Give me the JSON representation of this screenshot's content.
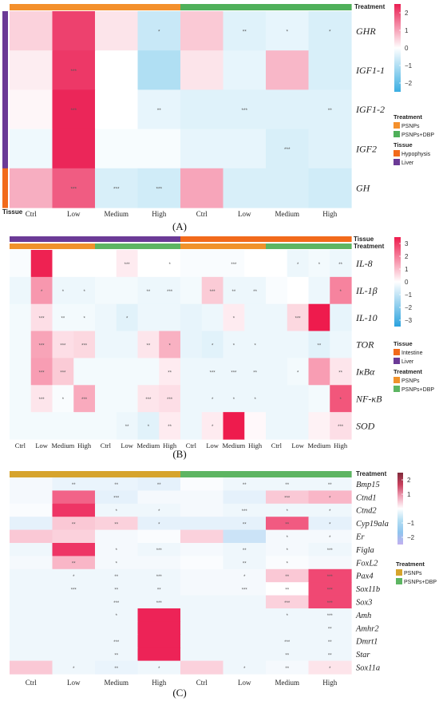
{
  "chart_data": [
    {
      "type": "heatmap",
      "panel_label": "(A)",
      "rows": [
        "GHR",
        "IGF1-1",
        "IGF1-2",
        "IGF2",
        "GH"
      ],
      "columns": [
        "Ctrl",
        "Low",
        "Medium",
        "High",
        "Ctrl",
        "Low",
        "Medium",
        "High"
      ],
      "values": [
        [
          0.5,
          2.1,
          0.3,
          -0.7,
          0.6,
          -0.4,
          -0.3,
          -0.5
        ],
        [
          0.2,
          2.2,
          0.0,
          -1.0,
          0.3,
          -0.3,
          0.8,
          -0.5
        ],
        [
          0.1,
          2.4,
          0.0,
          -0.3,
          -0.4,
          -0.4,
          -0.4,
          -0.4
        ],
        [
          -0.2,
          2.4,
          -0.1,
          -0.1,
          -0.3,
          -0.3,
          -0.5,
          -0.4
        ],
        [
          0.9,
          1.8,
          -0.5,
          -0.6,
          1.0,
          -0.5,
          -0.5,
          -0.6
        ]
      ],
      "significance": [
        [
          "",
          "",
          "",
          "*",
          "",
          "**",
          "*",
          "*"
        ],
        [
          "",
          "***",
          "",
          "",
          "",
          "",
          "",
          ""
        ],
        [
          "",
          "***",
          "",
          "**",
          "",
          "***",
          "",
          "**"
        ],
        [
          "",
          "",
          "",
          "",
          "",
          "",
          "***",
          ""
        ],
        [
          "",
          "***",
          "***",
          "***",
          "",
          "",
          "",
          ""
        ]
      ],
      "color_scale": {
        "range": [
          -2.5,
          2.5
        ],
        "ticks": [
          "2",
          "1",
          "0",
          "−1",
          "−2"
        ],
        "colors": {
          "low": "#3aaee2",
          "mid": "#ffffff",
          "high": "#ea1d52"
        }
      },
      "column_annotations": [
        {
          "name": "Treatment",
          "categories": [
            {
              "label": "PSNPs",
              "color": "#f4902c"
            },
            {
              "label": "PSNPs+DBP",
              "color": "#4fb05a"
            }
          ],
          "values": [
            0,
            0,
            0,
            0,
            1,
            1,
            1,
            1
          ]
        }
      ],
      "row_annotations": [
        {
          "name": "Tissue",
          "categories": [
            {
              "label": "Hypophysis",
              "color": "#f26a1b"
            },
            {
              "label": "Liver",
              "color": "#6b3a96"
            }
          ],
          "values": [
            1,
            1,
            1,
            1,
            0
          ]
        }
      ]
    },
    {
      "type": "heatmap",
      "panel_label": "(B)",
      "rows": [
        "IL-8",
        "IL-1β",
        "IL-10",
        "TOR",
        "IκBα",
        "NF-κB",
        "SOD"
      ],
      "columns": [
        "Ctrl",
        "Low",
        "Medium",
        "High",
        "Ctrl",
        "Low",
        "Medium",
        "High",
        "Ctrl",
        "Low",
        "Medium",
        "High",
        "Ctrl",
        "Low",
        "Medium",
        "High"
      ],
      "values": [
        [
          -0.1,
          3.4,
          0.0,
          0.0,
          0.0,
          0.3,
          0.0,
          0.0,
          -0.1,
          -0.1,
          -0.1,
          0.0,
          0.0,
          -0.3,
          -0.2,
          -0.3
        ],
        [
          -0.3,
          1.6,
          -0.3,
          -0.3,
          -0.2,
          -0.2,
          -0.3,
          -0.3,
          -0.2,
          0.8,
          -0.3,
          -0.3,
          -0.1,
          0.0,
          -0.3,
          1.9
        ],
        [
          -0.2,
          0.5,
          -0.2,
          -0.2,
          -0.3,
          -0.5,
          -0.3,
          -0.3,
          -0.4,
          -0.3,
          0.3,
          -0.3,
          -0.3,
          0.6,
          3.5,
          -0.4
        ],
        [
          -0.2,
          1.4,
          0.5,
          0.6,
          -0.3,
          -0.3,
          0.4,
          1.2,
          -0.4,
          -0.5,
          -0.3,
          -0.3,
          -0.3,
          -0.3,
          -0.5,
          -0.3
        ],
        [
          -0.2,
          1.5,
          0.8,
          -0.2,
          -0.2,
          -0.2,
          -0.2,
          0.3,
          -0.3,
          -0.3,
          -0.3,
          -0.3,
          -0.3,
          -0.2,
          1.5,
          0.4
        ],
        [
          -0.2,
          0.4,
          -0.1,
          1.3,
          -0.2,
          -0.2,
          0.4,
          0.5,
          -0.3,
          -0.3,
          -0.3,
          -0.3,
          -0.3,
          -0.3,
          -0.2,
          2.6
        ],
        [
          -0.2,
          -0.2,
          -0.2,
          -0.2,
          -0.2,
          -0.3,
          -0.5,
          0.3,
          -0.3,
          0.3,
          3.5,
          0.1,
          -0.3,
          -0.3,
          0.2,
          0.5
        ]
      ],
      "significance": [
        [
          "",
          "",
          "",
          "",
          "",
          "***",
          "",
          "*",
          "",
          "",
          "***",
          "",
          "",
          "*",
          "*",
          "**"
        ],
        [
          "",
          "*",
          "*",
          "*",
          "",
          "",
          "**",
          "***",
          "",
          "***",
          "**",
          "**",
          "",
          "",
          "",
          "*"
        ],
        [
          "",
          "***",
          "**",
          "*",
          "",
          "*",
          "",
          "",
          "",
          "",
          "*",
          "",
          "",
          "***",
          "",
          ""
        ],
        [
          "",
          "***",
          "***",
          "***",
          "",
          "",
          "**",
          "*",
          "",
          "*",
          "*",
          "*",
          "",
          "",
          "**",
          ""
        ],
        [
          "",
          "***",
          "***",
          "",
          "",
          "",
          "",
          "**",
          "",
          "***",
          "***",
          "**",
          "",
          "*",
          "",
          "**"
        ],
        [
          "",
          "***",
          "*",
          "***",
          "",
          "",
          "***",
          "***",
          "",
          "*",
          "*",
          "*",
          "",
          "",
          "",
          "*"
        ],
        [
          "",
          "",
          "",
          "",
          "",
          "**",
          "*",
          "**",
          "",
          "*",
          "",
          "",
          "",
          "",
          "",
          "***"
        ]
      ],
      "color_scale": {
        "range": [
          -3.5,
          3.5
        ],
        "ticks": [
          "3",
          "2",
          "1",
          "0",
          "−1",
          "−2",
          "−3"
        ],
        "colors": {
          "low": "#2ba2de",
          "mid": "#ffffff",
          "high": "#ee1b4d"
        }
      },
      "column_annotations": [
        {
          "name": "Tissue",
          "categories": [
            {
              "label": "Intestine",
              "color": "#f26a1b"
            },
            {
              "label": "Liver",
              "color": "#6b3a96"
            }
          ],
          "values": [
            1,
            1,
            1,
            1,
            1,
            1,
            1,
            1,
            0,
            0,
            0,
            0,
            0,
            0,
            0,
            0
          ]
        },
        {
          "name": "Treatment",
          "categories": [
            {
              "label": "PSNPs",
              "color": "#f0922b"
            },
            {
              "label": "PSNPs+DBP",
              "color": "#5db562"
            }
          ],
          "values": [
            0,
            0,
            0,
            0,
            1,
            1,
            1,
            1,
            0,
            0,
            0,
            0,
            1,
            1,
            1,
            1
          ]
        }
      ],
      "row_annotations": []
    },
    {
      "type": "heatmap",
      "panel_label": "(C)",
      "rows": [
        "Bmp15",
        "Ctnd1",
        "Ctnd2",
        "Cyp19ala",
        "Er",
        "Figla",
        "FoxL2",
        "Pax4",
        "Sox11b",
        "Sox3",
        "Amh",
        "Amhr2",
        "Dmrt1",
        "Star",
        "Sox11a"
      ],
      "columns": [
        "Ctrl",
        "Low",
        "Medium",
        "High",
        "Ctrl",
        "Low",
        "Medium",
        "High"
      ],
      "values": [
        [
          -0.2,
          -0.4,
          -0.4,
          -0.5,
          -0.1,
          -0.3,
          -0.3,
          -0.3
        ],
        [
          -0.2,
          1.7,
          -0.5,
          -0.2,
          -0.2,
          -0.5,
          0.6,
          0.8
        ],
        [
          -0.1,
          2.2,
          -0.3,
          -0.3,
          -0.2,
          -0.3,
          -0.3,
          -0.3
        ],
        [
          -0.5,
          0.6,
          0.5,
          -0.5,
          -0.5,
          -0.5,
          1.8,
          -0.5
        ],
        [
          0.6,
          0.5,
          -0.2,
          -0.1,
          0.5,
          -1.0,
          -0.2,
          -0.2
        ],
        [
          -0.3,
          2.2,
          -0.2,
          -0.3,
          -0.2,
          -0.3,
          -0.2,
          -0.3
        ],
        [
          -0.2,
          0.8,
          -0.2,
          -0.2,
          -0.1,
          -0.3,
          -0.1,
          -0.2
        ],
        [
          -0.3,
          -0.3,
          -0.3,
          -0.3,
          -0.2,
          -0.2,
          0.6,
          2.0
        ],
        [
          -0.3,
          -0.3,
          -0.3,
          -0.3,
          -0.2,
          -0.2,
          0.0,
          2.0
        ],
        [
          -0.3,
          -0.3,
          -0.3,
          -0.3,
          -0.3,
          -0.3,
          0.5,
          2.0
        ],
        [
          -0.3,
          -0.3,
          -0.3,
          2.4,
          -0.3,
          -0.3,
          -0.3,
          -0.3
        ],
        [
          -0.3,
          -0.3,
          -0.3,
          2.4,
          -0.3,
          -0.3,
          -0.3,
          -0.3
        ],
        [
          -0.3,
          -0.3,
          -0.3,
          2.4,
          -0.3,
          -0.3,
          -0.3,
          -0.3
        ],
        [
          -0.3,
          -0.3,
          -0.3,
          2.4,
          -0.3,
          -0.3,
          -0.3,
          -0.3
        ],
        [
          0.6,
          -0.3,
          -0.4,
          -0.3,
          0.5,
          -0.3,
          -0.2,
          0.3
        ]
      ],
      "significance": [
        [
          "",
          "**",
          "**",
          "**",
          "",
          "**",
          "**",
          "**"
        ],
        [
          "",
          "",
          "***",
          "",
          "",
          "",
          "***",
          "*"
        ],
        [
          "",
          "",
          "*",
          "*",
          "",
          "***",
          "*",
          "*"
        ],
        [
          "",
          "**",
          "**",
          "*",
          "",
          "**",
          "**",
          "*"
        ],
        [
          "",
          "",
          "",
          "",
          "",
          "",
          "*",
          "*"
        ],
        [
          "",
          "",
          "*",
          "***",
          "",
          "**",
          "*",
          "***"
        ],
        [
          "",
          "**",
          "*",
          "",
          "",
          "**",
          "*",
          ""
        ],
        [
          "",
          "*",
          "**",
          "***",
          "",
          "*",
          "**",
          "***"
        ],
        [
          "",
          "***",
          "**",
          "**",
          "",
          "***",
          "**",
          "***"
        ],
        [
          "",
          "",
          "***",
          "***",
          "",
          "",
          "***",
          "***"
        ],
        [
          "",
          "",
          "*",
          "",
          "",
          "",
          "*",
          "***"
        ],
        [
          "",
          "",
          "",
          "",
          "",
          "",
          "",
          "**"
        ],
        [
          "",
          "",
          "***",
          "",
          "",
          "",
          "***",
          "**"
        ],
        [
          "",
          "",
          "**",
          "",
          "",
          "",
          "**",
          "**"
        ],
        [
          "",
          "*",
          "**",
          "*",
          "",
          "*",
          "**",
          "*"
        ]
      ],
      "color_scale": {
        "range": [
          -2.5,
          2.5
        ],
        "ticks": [
          "2",
          "1",
          "−1",
          "−2"
        ],
        "colors": {
          "low": "#7db9ea",
          "mid": "#ffffff",
          "high": "#ec1a50"
        },
        "colorbar_colors": [
          "#7f2a3b",
          "#c9405e",
          "#f0a5b9",
          "#ffffff",
          "#b3def3",
          "#8fc4ee",
          "#c2b0ef"
        ]
      },
      "column_annotations": [
        {
          "name": "Treatment",
          "categories": [
            {
              "label": "PSNPs",
              "color": "#d6a42c"
            },
            {
              "label": "PSNPs+DBP",
              "color": "#5db562"
            }
          ],
          "values": [
            0,
            0,
            0,
            0,
            1,
            1,
            1,
            1
          ]
        }
      ],
      "row_annotations": []
    }
  ]
}
